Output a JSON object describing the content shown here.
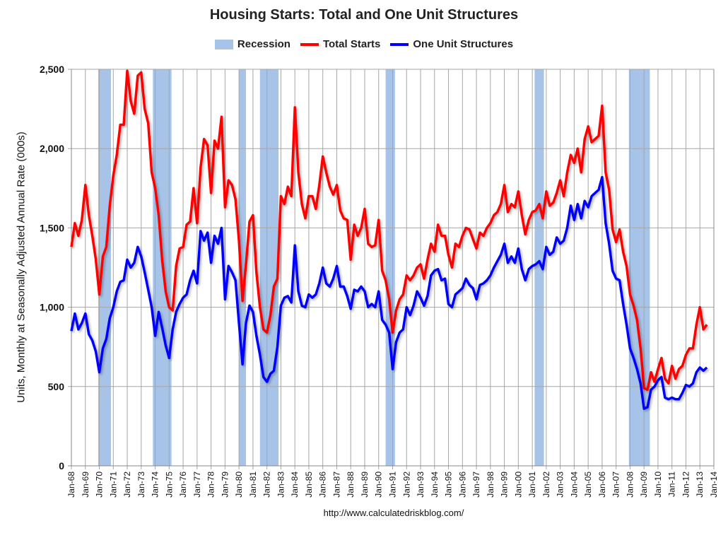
{
  "chart_data": {
    "type": "line",
    "title": "Housing Starts: Total and One Unit Structures",
    "ylabel": "Units, Monthly at Seasonally Adjusted Annual Rate (000s)",
    "xlabel": "",
    "ylim": [
      0,
      2500
    ],
    "xlim": [
      "1968-01",
      "2014-01"
    ],
    "y_ticks": [
      "0",
      "500",
      "1,000",
      "1,500",
      "2,000",
      "2,500"
    ],
    "y_tick_values": [
      0,
      500,
      1000,
      1500,
      2000,
      2500
    ],
    "x_ticks": [
      "Jan-68",
      "Jan-69",
      "Jan-70",
      "Jan-71",
      "Jan-72",
      "Jan-73",
      "Jan-74",
      "Jan-75",
      "Jan-76",
      "Jan-77",
      "Jan-78",
      "Jan-79",
      "Jan-80",
      "Jan-81",
      "Jan-82",
      "Jan-83",
      "Jan-84",
      "Jan-85",
      "Jan-86",
      "Jan-87",
      "Jan-88",
      "Jan-89",
      "Jan-90",
      "Jan-91",
      "Jan-92",
      "Jan-93",
      "Jan-94",
      "Jan-95",
      "Jan-96",
      "Jan-97",
      "Jan-98",
      "Jan-99",
      "Jan-00",
      "Jan-01",
      "Jan-02",
      "Jan-03",
      "Jan-04",
      "Jan-05",
      "Jan-06",
      "Jan-07",
      "Jan-08",
      "Jan-09",
      "Jan-10",
      "Jan-11",
      "Jan-12",
      "Jan-13",
      "Jan-14"
    ],
    "grid": true,
    "legend_position": "top",
    "legend": [
      "Recession",
      "Total Starts",
      "One Unit Structures"
    ],
    "colors": {
      "recession": "#a7c3e8",
      "total": "#ff0000",
      "one_unit": "#0000ff",
      "grid": "#a6a6a6"
    },
    "recessions": [
      [
        "1969-12",
        "1970-11"
      ],
      [
        "1973-11",
        "1975-03"
      ],
      [
        "1980-01",
        "1980-07"
      ],
      [
        "1981-07",
        "1982-11"
      ],
      [
        "1990-07",
        "1991-03"
      ],
      [
        "2001-03",
        "2001-11"
      ],
      [
        "2007-12",
        "2009-06"
      ]
    ],
    "x": [
      "1968-01",
      "1968-04",
      "1968-07",
      "1968-10",
      "1969-01",
      "1969-04",
      "1969-07",
      "1969-10",
      "1970-01",
      "1970-04",
      "1970-07",
      "1970-10",
      "1971-01",
      "1971-04",
      "1971-07",
      "1971-10",
      "1972-01",
      "1972-04",
      "1972-07",
      "1972-10",
      "1973-01",
      "1973-04",
      "1973-07",
      "1973-10",
      "1974-01",
      "1974-04",
      "1974-07",
      "1974-10",
      "1975-01",
      "1975-04",
      "1975-07",
      "1975-10",
      "1976-01",
      "1976-04",
      "1976-07",
      "1976-10",
      "1977-01",
      "1977-04",
      "1977-07",
      "1977-10",
      "1978-01",
      "1978-04",
      "1978-07",
      "1978-10",
      "1979-01",
      "1979-04",
      "1979-07",
      "1979-10",
      "1980-01",
      "1980-04",
      "1980-07",
      "1980-10",
      "1981-01",
      "1981-04",
      "1981-07",
      "1981-10",
      "1982-01",
      "1982-04",
      "1982-07",
      "1982-10",
      "1983-01",
      "1983-04",
      "1983-07",
      "1983-10",
      "1984-01",
      "1984-04",
      "1984-07",
      "1984-10",
      "1985-01",
      "1985-04",
      "1985-07",
      "1985-10",
      "1986-01",
      "1986-04",
      "1986-07",
      "1986-10",
      "1987-01",
      "1987-04",
      "1987-07",
      "1987-10",
      "1988-01",
      "1988-04",
      "1988-07",
      "1988-10",
      "1989-01",
      "1989-04",
      "1989-07",
      "1989-10",
      "1990-01",
      "1990-04",
      "1990-07",
      "1990-10",
      "1991-01",
      "1991-04",
      "1991-07",
      "1991-10",
      "1992-01",
      "1992-04",
      "1992-07",
      "1992-10",
      "1993-01",
      "1993-04",
      "1993-07",
      "1993-10",
      "1994-01",
      "1994-04",
      "1994-07",
      "1994-10",
      "1995-01",
      "1995-04",
      "1995-07",
      "1995-10",
      "1996-01",
      "1996-04",
      "1996-07",
      "1996-10",
      "1997-01",
      "1997-04",
      "1997-07",
      "1997-10",
      "1998-01",
      "1998-04",
      "1998-07",
      "1998-10",
      "1999-01",
      "1999-04",
      "1999-07",
      "1999-10",
      "2000-01",
      "2000-04",
      "2000-07",
      "2000-10",
      "2001-01",
      "2001-04",
      "2001-07",
      "2001-10",
      "2002-01",
      "2002-04",
      "2002-07",
      "2002-10",
      "2003-01",
      "2003-04",
      "2003-07",
      "2003-10",
      "2004-01",
      "2004-04",
      "2004-07",
      "2004-10",
      "2005-01",
      "2005-04",
      "2005-07",
      "2005-10",
      "2006-01",
      "2006-04",
      "2006-07",
      "2006-10",
      "2007-01",
      "2007-04",
      "2007-07",
      "2007-10",
      "2008-01",
      "2008-04",
      "2008-07",
      "2008-10",
      "2009-01",
      "2009-04",
      "2009-07",
      "2009-10",
      "2010-01",
      "2010-04",
      "2010-07",
      "2010-10",
      "2011-01",
      "2011-04",
      "2011-07",
      "2011-10",
      "2012-01",
      "2012-04",
      "2012-07",
      "2012-10",
      "2013-01",
      "2013-04",
      "2013-07"
    ],
    "series": [
      {
        "name": "Total Starts",
        "values": [
          1380,
          1530,
          1450,
          1550,
          1770,
          1580,
          1450,
          1300,
          1080,
          1320,
          1380,
          1640,
          1830,
          1960,
          2150,
          2150,
          2490,
          2300,
          2220,
          2460,
          2480,
          2250,
          2160,
          1850,
          1750,
          1580,
          1300,
          1100,
          1000,
          980,
          1260,
          1370,
          1380,
          1520,
          1540,
          1750,
          1530,
          1880,
          2060,
          2020,
          1720,
          2050,
          2000,
          2200,
          1630,
          1800,
          1770,
          1680,
          1420,
          1040,
          1270,
          1540,
          1580,
          1220,
          1000,
          860,
          840,
          950,
          1130,
          1180,
          1700,
          1650,
          1760,
          1700,
          2260,
          1850,
          1650,
          1560,
          1700,
          1700,
          1620,
          1770,
          1950,
          1850,
          1760,
          1710,
          1770,
          1610,
          1560,
          1550,
          1300,
          1520,
          1450,
          1500,
          1620,
          1400,
          1380,
          1390,
          1550,
          1230,
          1170,
          1050,
          840,
          980,
          1050,
          1080,
          1200,
          1170,
          1200,
          1250,
          1270,
          1180,
          1300,
          1400,
          1350,
          1520,
          1450,
          1450,
          1330,
          1250,
          1400,
          1380,
          1450,
          1500,
          1490,
          1430,
          1370,
          1470,
          1450,
          1500,
          1530,
          1580,
          1600,
          1650,
          1770,
          1600,
          1650,
          1630,
          1730,
          1580,
          1460,
          1550,
          1600,
          1610,
          1650,
          1560,
          1730,
          1640,
          1660,
          1720,
          1800,
          1700,
          1850,
          1960,
          1910,
          2000,
          1850,
          2060,
          2140,
          2040,
          2060,
          2080,
          2270,
          1850,
          1740,
          1490,
          1410,
          1490,
          1350,
          1260,
          1080,
          1010,
          920,
          740,
          490,
          480,
          590,
          530,
          610,
          680,
          550,
          520,
          630,
          550,
          610,
          630,
          700,
          740,
          740,
          890,
          1000,
          860,
          890
        ]
      },
      {
        "name": "One Unit Structures",
        "values": [
          850,
          960,
          860,
          900,
          960,
          830,
          790,
          720,
          590,
          740,
          800,
          930,
          1000,
          1100,
          1160,
          1170,
          1300,
          1250,
          1280,
          1380,
          1320,
          1220,
          1110,
          1000,
          820,
          970,
          870,
          760,
          680,
          860,
          970,
          1020,
          1060,
          1080,
          1170,
          1230,
          1150,
          1480,
          1420,
          1470,
          1280,
          1450,
          1400,
          1500,
          1050,
          1260,
          1220,
          1170,
          900,
          640,
          900,
          1010,
          970,
          820,
          700,
          560,
          530,
          580,
          600,
          750,
          1010,
          1060,
          1070,
          1030,
          1390,
          1100,
          1010,
          1000,
          1080,
          1060,
          1080,
          1150,
          1250,
          1150,
          1130,
          1180,
          1260,
          1130,
          1130,
          1070,
          990,
          1110,
          1100,
          1130,
          1100,
          1000,
          1020,
          1000,
          1100,
          920,
          890,
          840,
          610,
          780,
          840,
          860,
          1000,
          950,
          1010,
          1100,
          1060,
          1010,
          1070,
          1200,
          1230,
          1240,
          1170,
          1180,
          1020,
          1000,
          1080,
          1100,
          1120,
          1180,
          1140,
          1120,
          1050,
          1140,
          1150,
          1170,
          1200,
          1250,
          1290,
          1330,
          1400,
          1280,
          1320,
          1280,
          1370,
          1240,
          1170,
          1240,
          1260,
          1270,
          1290,
          1240,
          1380,
          1330,
          1350,
          1440,
          1400,
          1420,
          1500,
          1640,
          1550,
          1650,
          1560,
          1670,
          1630,
          1700,
          1720,
          1740,
          1820,
          1530,
          1400,
          1230,
          1180,
          1170,
          1020,
          890,
          740,
          680,
          610,
          520,
          360,
          370,
          480,
          500,
          540,
          560,
          430,
          420,
          430,
          420,
          420,
          460,
          510,
          500,
          520,
          590,
          620,
          600,
          620
        ]
      }
    ]
  },
  "footer": {
    "source": "http://www.calculatedriskblog.com/"
  }
}
